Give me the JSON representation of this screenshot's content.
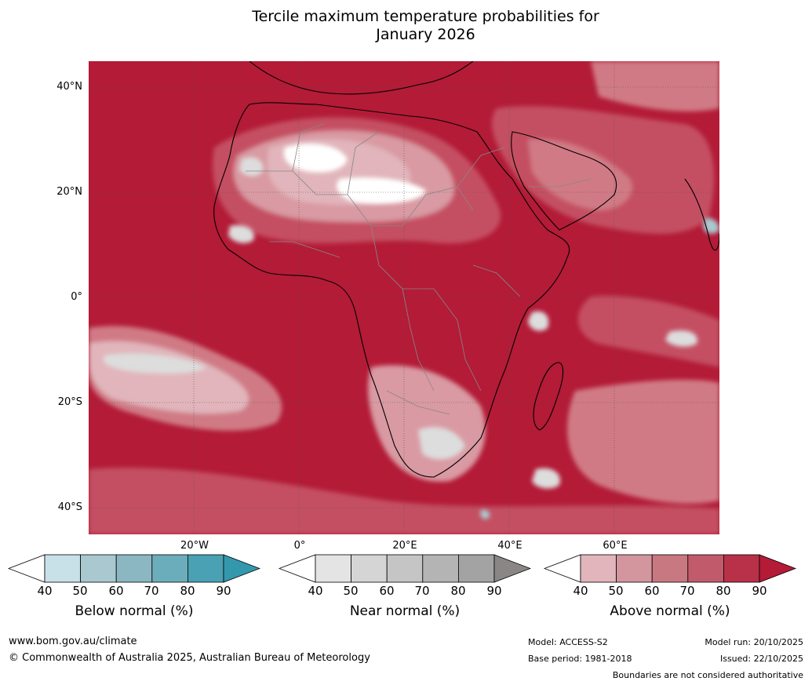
{
  "title": {
    "line1": "Tercile maximum temperature probabilities for",
    "line2": "January 2026"
  },
  "map": {
    "lat_labels": [
      "40°N",
      "20°N",
      "0°",
      "20°S",
      "40°S"
    ],
    "lon_labels": [
      "20°W",
      "0°",
      "20°E",
      "40°E",
      "60°E"
    ],
    "colors": {
      "ocean_background": "#b31b37",
      "above_80": "#b92e46",
      "above_70": "#c45062",
      "above_60": "#d07a85",
      "above_50": "#d99aa3",
      "above_40": "#e1b5bb",
      "near_normal": "#dddddd",
      "white_area": "#ffffff",
      "below_normal": "#a9c9d0",
      "coastline": "#000000",
      "borders": "#888888",
      "gridline": "#555555"
    }
  },
  "legends": [
    {
      "title": "Below normal (%)",
      "ticks": [
        "40",
        "50",
        "60",
        "70",
        "80",
        "90"
      ],
      "colors": [
        "#ffffff",
        "#c8e0e7",
        "#a9c8cf",
        "#8bb7c2",
        "#6cadbb",
        "#49a1b3",
        "#3498ad"
      ]
    },
    {
      "title": "Near normal (%)",
      "ticks": [
        "40",
        "50",
        "60",
        "70",
        "80",
        "90"
      ],
      "colors": [
        "#ffffff",
        "#e4e4e4",
        "#d5d5d5",
        "#c5c5c5",
        "#b4b4b4",
        "#a3a3a3",
        "#8a8686"
      ]
    },
    {
      "title": "Above normal (%)",
      "ticks": [
        "40",
        "50",
        "60",
        "70",
        "80",
        "90"
      ],
      "colors": [
        "#ffffff",
        "#e1b5bb",
        "#d3959e",
        "#c77880",
        "#c15b6c",
        "#b83148",
        "#b31b37"
      ]
    }
  ],
  "footer": {
    "website": "www.bom.gov.au/climate",
    "copyright": "© Commonwealth of Australia 2025, Australian Bureau of Meteorology",
    "model": "Model: ACCESS-S2",
    "base_period": "Base period: 1981-2018",
    "model_run": "Model run: 20/10/2025",
    "issued": "Issued: 22/10/2025",
    "disclaimer": "Boundaries are not considered authoritative"
  }
}
